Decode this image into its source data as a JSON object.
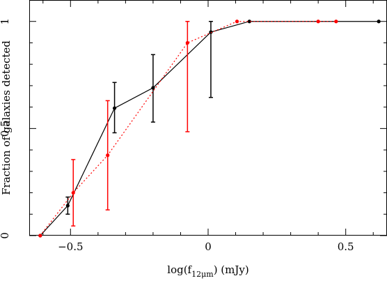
{
  "chart_data": {
    "type": "line",
    "xlabel": {
      "prefix": "log(f",
      "subscript": "12μm",
      "suffix": ") (mJy)"
    },
    "ylabel": "Fraction of galaxies detected",
    "xlim": [
      -0.65,
      0.65
    ],
    "ylim": [
      0,
      1.1
    ],
    "x_ticks": [
      {
        "value": -0.5,
        "label": "−0.5"
      },
      {
        "value": 0,
        "label": "0"
      },
      {
        "value": 0.5,
        "label": "0.5"
      }
    ],
    "x_minor_step": 0.1,
    "y_ticks": [
      {
        "value": 0,
        "label": "0"
      },
      {
        "value": 0.5,
        "label": "0.5"
      },
      {
        "value": 1,
        "label": "1"
      }
    ],
    "y_minor_step": 0.1,
    "grid": false,
    "series": [
      {
        "color": "#000000",
        "line_style": "solid",
        "points": [
          {
            "x": -0.61,
            "y": 0.0
          },
          {
            "x": -0.51,
            "y": 0.14,
            "err_low": 0.1,
            "err_high": 0.18
          },
          {
            "x": -0.34,
            "y": 0.595,
            "err_low": 0.48,
            "err_high": 0.715
          },
          {
            "x": -0.2,
            "y": 0.69,
            "err_low": 0.53,
            "err_high": 0.845
          },
          {
            "x": 0.01,
            "y": 0.95,
            "err_low": 0.645,
            "err_high": 1.0
          },
          {
            "x": 0.15,
            "y": 1.0
          },
          {
            "x": 0.62,
            "y": 1.0
          }
        ]
      },
      {
        "color": "#ff0000",
        "line_style": "dotted",
        "points": [
          {
            "x": -0.61,
            "y": 0.0
          },
          {
            "x": -0.49,
            "y": 0.2,
            "err_low": 0.045,
            "err_high": 0.355
          },
          {
            "x": -0.365,
            "y": 0.375,
            "err_low": 0.12,
            "err_high": 0.63
          },
          {
            "x": -0.075,
            "y": 0.9,
            "err_low": 0.485,
            "err_high": 1.0
          },
          {
            "x": 0.105,
            "y": 1.0
          },
          {
            "x": 0.4,
            "y": 1.0
          },
          {
            "x": 0.465,
            "y": 1.0
          }
        ]
      }
    ]
  }
}
